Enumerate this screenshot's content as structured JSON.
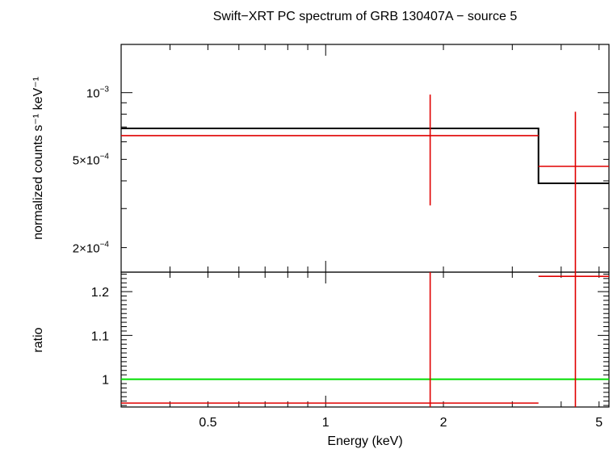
{
  "title": "Swift−XRT PC spectrum of GRB 130407A − source 5",
  "xlabel": "Energy (keV)",
  "colors": {
    "data": "#e00000",
    "model": "#000000",
    "unity": "#00dd00",
    "frame": "#000000"
  },
  "chart_data": [
    {
      "type": "line",
      "panel": "spectrum",
      "ylabel": "normalized counts s⁻¹ keV⁻¹",
      "x_scale": "log",
      "y_scale": "log",
      "xlim": [
        0.3,
        5.3
      ],
      "ylim": [
        0.000155,
        0.00165
      ],
      "y_tick_labels": [
        {
          "value": 0.001,
          "mant": "10",
          "exp": "−3"
        },
        {
          "value": 0.0005,
          "mant": "5×10",
          "exp": "−4"
        },
        {
          "value": 0.0002,
          "mant": "2×10",
          "exp": "−4"
        }
      ],
      "series": [
        {
          "role": "data",
          "points": [
            {
              "x_lo": 0.3,
              "x_hi": 3.5,
              "x": 1.85,
              "y": 0.00064,
              "y_lo": 0.00031,
              "y_hi": 0.00098
            },
            {
              "x_lo": 3.5,
              "x_hi": 5.3,
              "x": 4.35,
              "y": 0.000465,
              "y_lo": 0.00014,
              "y_hi": 0.00082
            }
          ]
        },
        {
          "role": "model",
          "steps": [
            {
              "x_lo": 0.3,
              "x_hi": 3.5,
              "y": 0.00069
            },
            {
              "x_lo": 3.5,
              "x_hi": 5.3,
              "y": 0.00039
            }
          ]
        }
      ]
    },
    {
      "type": "line",
      "panel": "ratio",
      "ylabel": "ratio",
      "x_scale": "log",
      "xlim": [
        0.3,
        5.3
      ],
      "ylim": [
        0.9365,
        1.2445
      ],
      "y_ticks": [
        1,
        1.1,
        1.2
      ],
      "y_tick_labels": [
        "1",
        "1.1",
        "1.2"
      ],
      "x_tick_labels": [
        {
          "value": 0.5,
          "label": "0.5"
        },
        {
          "value": 1,
          "label": "1"
        },
        {
          "value": 2,
          "label": "2"
        },
        {
          "value": 5,
          "label": "5"
        }
      ],
      "series": [
        {
          "role": "data",
          "points": [
            {
              "x_lo": 0.3,
              "x_hi": 3.5,
              "x": 1.85,
              "y": 0.9455,
              "y_lo": 0.9,
              "y_hi": 1.3
            },
            {
              "x_lo": 3.5,
              "x_hi": 5.3,
              "x": 4.35,
              "y": 1.235,
              "y_lo": 0.9,
              "y_hi": 1.3
            }
          ]
        },
        {
          "role": "unity",
          "y": 1
        }
      ]
    }
  ]
}
